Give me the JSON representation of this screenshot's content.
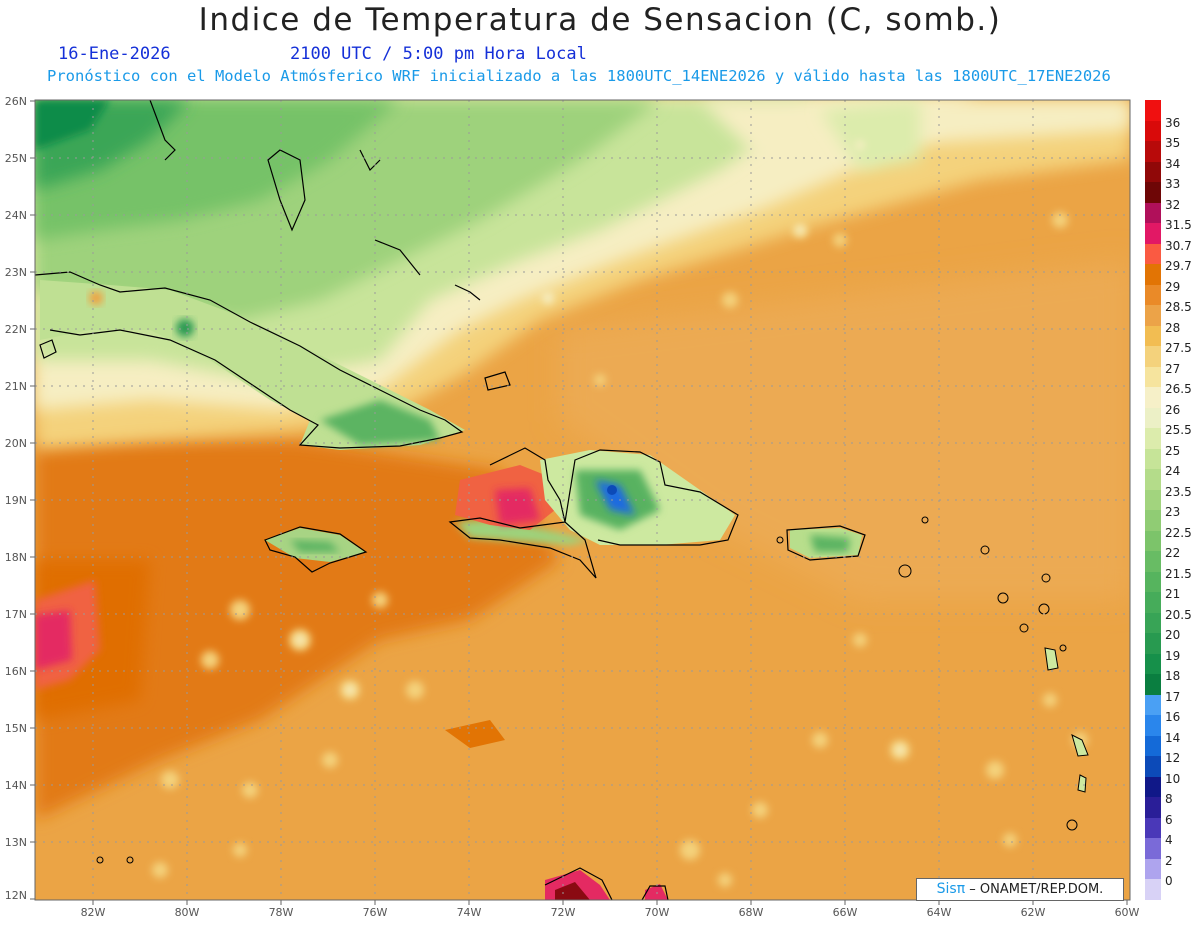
{
  "header": {
    "title": "Indice de Temperatura de Sensacion (C, somb.)",
    "date": "16-Ene-2026",
    "time": "2100 UTC / 5:00 pm Hora Local",
    "subtitle": "Pronóstico con el Modelo Atmósferico WRF inicializado a las 1800UTC_14ENE2026 y válido hasta las  1800UTC_17ENE2026"
  },
  "axes": {
    "lat_labels": [
      "26N",
      "25N",
      "24N",
      "23N",
      "22N",
      "21N",
      "20N",
      "19N",
      "18N",
      "17N",
      "16N",
      "15N",
      "14N",
      "13N",
      "12N"
    ],
    "lon_labels": [
      "82W",
      "80W",
      "78W",
      "76W",
      "74W",
      "72W",
      "70W",
      "68W",
      "66W",
      "64W",
      "62W",
      "60W"
    ]
  },
  "credit": {
    "brand": "Sisπ",
    "text": "– ONAMET/REP.DOM."
  },
  "colorbar": {
    "labels": [
      "36",
      "35",
      "34",
      "33",
      "32",
      "31.5",
      "30.7",
      "29.7",
      "29",
      "28.5",
      "28",
      "27.5",
      "27",
      "26.5",
      "26",
      "25.5",
      "25",
      "24",
      "23.5",
      "23",
      "22.5",
      "22",
      "21.5",
      "21",
      "20.5",
      "20",
      "19",
      "18",
      "17",
      "16",
      "14",
      "12",
      "10",
      "8",
      "6",
      "4",
      "2",
      "0"
    ],
    "colors": [
      "#f01010",
      "#d90a0a",
      "#b80a0a",
      "#900808",
      "#6e0606",
      "#b0105a",
      "#e21865",
      "#fa5a42",
      "#e27404",
      "#ea8a28",
      "#eca348",
      "#f2bd52",
      "#f4d27c",
      "#f6e49e",
      "#f6f0c8",
      "#ecf0c6",
      "#dcecac",
      "#c6e498",
      "#b4dc8a",
      "#a2d47e",
      "#90cc74",
      "#7cc46a",
      "#68bc64",
      "#56b45e",
      "#46ac5a",
      "#38a456",
      "#289a50",
      "#16904a",
      "#0a7e40",
      "#4aa0f4",
      "#2a86ec",
      "#146ad8",
      "#0c4ab8",
      "#101888",
      "#2a1e98",
      "#4a38b8",
      "#7a6ad8",
      "#aea4ee",
      "#d8d2f6"
    ]
  }
}
